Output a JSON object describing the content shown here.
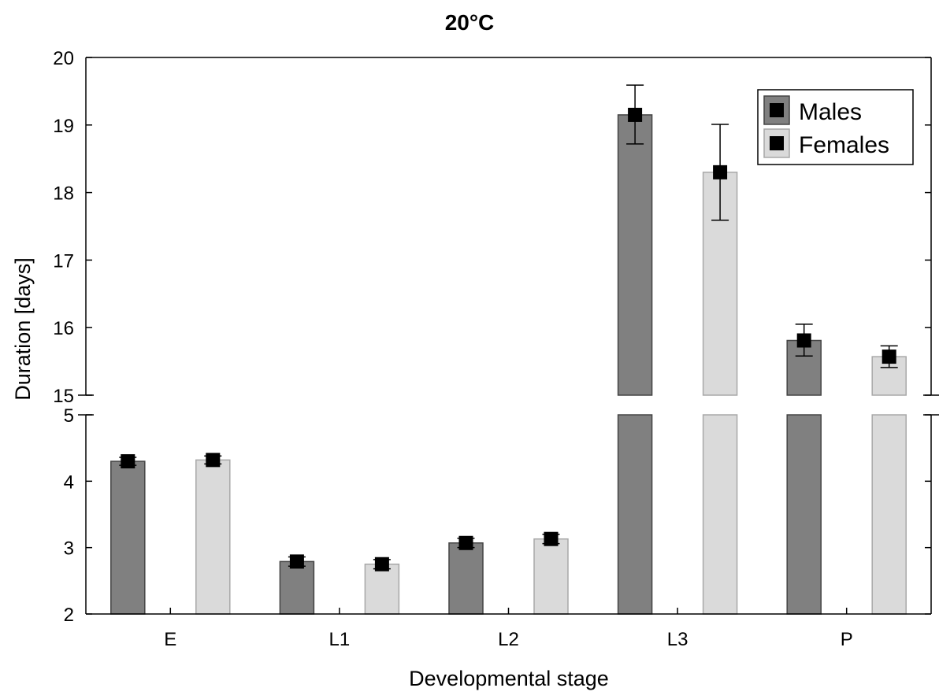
{
  "chart_data": {
    "type": "bar",
    "title": "20°C",
    "xlabel": "Developmental stage",
    "ylabel": "Duration [days]",
    "categories": [
      "E",
      "L1",
      "L2",
      "L3",
      "P"
    ],
    "y_axis_break": {
      "lower_range": [
        2,
        5
      ],
      "upper_range": [
        15,
        20
      ]
    },
    "yticks_lower": [
      2,
      3,
      4,
      5
    ],
    "yticks_upper": [
      15,
      16,
      17,
      18,
      19,
      20
    ],
    "legend_position": "top-right",
    "grid": false,
    "series": [
      {
        "name": "Males",
        "color": "#808080",
        "values": [
          4.3,
          2.79,
          3.07,
          19.15,
          15.81
        ],
        "error_low": [
          4.24,
          2.72,
          3.0,
          18.72,
          15.58
        ],
        "error_high": [
          4.36,
          2.86,
          3.14,
          19.59,
          16.05
        ]
      },
      {
        "name": "Females",
        "color": "#dadada",
        "values": [
          4.32,
          2.75,
          3.13,
          18.3,
          15.57
        ],
        "error_low": [
          4.26,
          2.68,
          3.06,
          17.59,
          15.41
        ],
        "error_high": [
          4.38,
          2.82,
          3.2,
          19.01,
          15.73
        ]
      }
    ]
  }
}
